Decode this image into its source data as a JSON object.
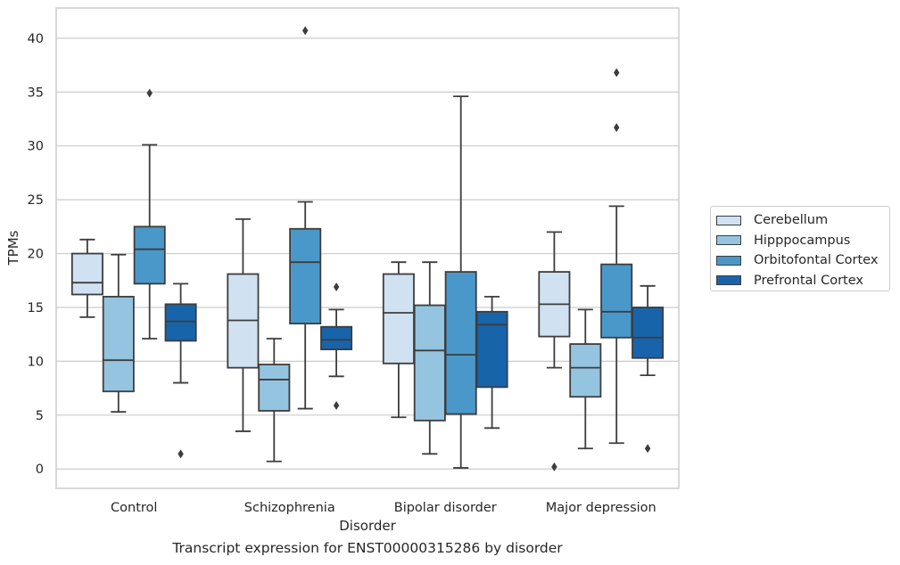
{
  "caption": "Transcript expression for ENST00000315286 by disorder",
  "chart_data": {
    "type": "box",
    "xlabel": "Disorder",
    "ylabel": "TPMs",
    "ylim": [
      -1.8,
      42.8
    ],
    "yticks": [
      0,
      5,
      10,
      15,
      20,
      25,
      30,
      35,
      40
    ],
    "grid": "horizontal",
    "legend_position": "right",
    "categories": [
      "Control",
      "Schizophrenia",
      "Bipolar disorder",
      "Major depression"
    ],
    "series": [
      {
        "name": "Cerebellum",
        "color": "#d0e1f2",
        "boxes": [
          {
            "whisker_low": 14.1,
            "q1": 16.2,
            "median": 17.3,
            "q3": 20.0,
            "whisker_high": 21.3,
            "outliers": []
          },
          {
            "whisker_low": 3.5,
            "q1": 9.4,
            "median": 13.8,
            "q3": 18.1,
            "whisker_high": 23.2,
            "outliers": []
          },
          {
            "whisker_low": 4.8,
            "q1": 9.8,
            "median": 14.5,
            "q3": 18.1,
            "whisker_high": 19.2,
            "outliers": []
          },
          {
            "whisker_low": 9.4,
            "q1": 12.3,
            "median": 15.3,
            "q3": 18.3,
            "whisker_high": 22.0,
            "outliers": [
              0.2
            ]
          }
        ]
      },
      {
        "name": "Hipppocampus",
        "color": "#94c4df",
        "boxes": [
          {
            "whisker_low": 5.3,
            "q1": 7.2,
            "median": 10.1,
            "q3": 16.0,
            "whisker_high": 19.9,
            "outliers": []
          },
          {
            "whisker_low": 0.7,
            "q1": 5.4,
            "median": 8.3,
            "q3": 9.7,
            "whisker_high": 12.1,
            "outliers": []
          },
          {
            "whisker_low": 1.4,
            "q1": 4.5,
            "median": 11.0,
            "q3": 15.2,
            "whisker_high": 19.2,
            "outliers": []
          },
          {
            "whisker_low": 1.9,
            "q1": 6.7,
            "median": 9.4,
            "q3": 11.6,
            "whisker_high": 14.8,
            "outliers": []
          }
        ]
      },
      {
        "name": "Orbitofontal Cortex",
        "color": "#4a98c9",
        "boxes": [
          {
            "whisker_low": 12.1,
            "q1": 17.2,
            "median": 20.4,
            "q3": 22.5,
            "whisker_high": 30.1,
            "outliers": [
              34.9
            ]
          },
          {
            "whisker_low": 5.6,
            "q1": 13.5,
            "median": 19.2,
            "q3": 22.3,
            "whisker_high": 24.8,
            "outliers": [
              40.7
            ]
          },
          {
            "whisker_low": 0.1,
            "q1": 5.1,
            "median": 10.6,
            "q3": 18.3,
            "whisker_high": 34.6,
            "outliers": []
          },
          {
            "whisker_low": 2.4,
            "q1": 12.2,
            "median": 14.6,
            "q3": 19.0,
            "whisker_high": 24.4,
            "outliers": [
              31.7,
              36.8
            ]
          }
        ]
      },
      {
        "name": "Prefrontal Cortex",
        "color": "#1764ab",
        "boxes": [
          {
            "whisker_low": 8.0,
            "q1": 11.9,
            "median": 13.7,
            "q3": 15.3,
            "whisker_high": 17.2,
            "outliers": [
              1.4
            ]
          },
          {
            "whisker_low": 8.6,
            "q1": 11.1,
            "median": 12.0,
            "q3": 13.2,
            "whisker_high": 14.8,
            "outliers": [
              5.9,
              16.9
            ]
          },
          {
            "whisker_low": 3.8,
            "q1": 7.6,
            "median": 13.4,
            "q3": 14.6,
            "whisker_high": 16.0,
            "outliers": []
          },
          {
            "whisker_low": 8.7,
            "q1": 10.3,
            "median": 12.2,
            "q3": 15.0,
            "whisker_high": 17.0,
            "outliers": [
              1.9
            ]
          }
        ]
      }
    ]
  }
}
